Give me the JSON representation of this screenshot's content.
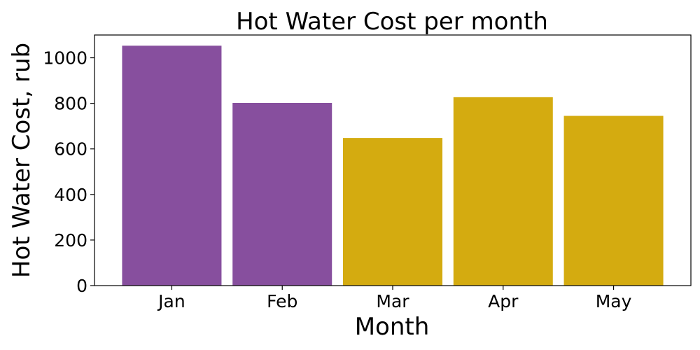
{
  "chart_data": {
    "type": "bar",
    "title": "Hot Water Cost per month",
    "xlabel": "Month",
    "ylabel": "Hot Water Cost, rub",
    "categories": [
      "Jan",
      "Feb",
      "Mar",
      "Apr",
      "May"
    ],
    "values": [
      1053,
      802,
      648,
      827,
      745
    ],
    "bar_colors": [
      "#874f9e",
      "#874f9e",
      "#d4ab10",
      "#d4ab10",
      "#d4ab10"
    ],
    "ylim": [
      0,
      1100
    ],
    "yticks": [
      0,
      200,
      400,
      600,
      800,
      1000
    ],
    "grid": false,
    "legend": "none"
  }
}
